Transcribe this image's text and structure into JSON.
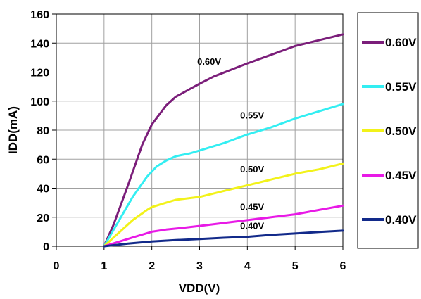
{
  "chart_data": {
    "type": "line",
    "title": "",
    "xlabel": "VDD(V)",
    "ylabel": "IDD(mA)",
    "xlim": [
      0,
      6
    ],
    "ylim": [
      0,
      160
    ],
    "xticks": [
      0,
      1,
      2,
      3,
      4,
      5,
      6
    ],
    "yticks": [
      0,
      20,
      40,
      60,
      80,
      100,
      120,
      140,
      160
    ],
    "grid": true,
    "legend_position": "right",
    "series": [
      {
        "name": "0.60V",
        "color": "#7B1E7A",
        "x": [
          1.0,
          1.2,
          1.5,
          1.8,
          2.0,
          2.3,
          2.5,
          3.0,
          3.3,
          4.0,
          4.5,
          5.0,
          5.5,
          6.0
        ],
        "y": [
          0,
          15,
          42,
          70,
          84,
          97,
          103,
          112,
          117,
          126,
          132,
          138,
          142,
          146
        ]
      },
      {
        "name": "0.55V",
        "color": "#33EEF2",
        "x": [
          1.0,
          1.3,
          1.6,
          1.9,
          2.1,
          2.3,
          2.5,
          2.8,
          3.0,
          3.5,
          4.0,
          4.5,
          5.0,
          5.5,
          6.0
        ],
        "y": [
          0,
          17,
          34,
          48,
          55,
          59,
          62,
          64,
          66,
          71,
          77,
          82,
          88,
          93,
          98
        ]
      },
      {
        "name": "0.50V",
        "color": "#F2F21A",
        "x": [
          1.0,
          1.3,
          1.6,
          1.9,
          2.0,
          2.3,
          2.5,
          3.0,
          3.5,
          4.0,
          4.5,
          5.0,
          5.5,
          6.0
        ],
        "y": [
          0,
          9,
          18,
          25,
          27,
          30,
          32,
          34,
          38,
          42,
          46,
          50,
          53,
          57
        ]
      },
      {
        "name": "0.45V",
        "color": "#E81AE6",
        "x": [
          1.0,
          1.3,
          1.6,
          2.0,
          2.3,
          2.6,
          3.0,
          3.5,
          4.0,
          4.5,
          5.0,
          5.5,
          6.0
        ],
        "y": [
          0,
          3,
          6,
          10,
          11.5,
          12.5,
          14,
          16,
          18,
          20,
          22,
          25,
          28
        ]
      },
      {
        "name": "0.40V",
        "color": "#122A8A",
        "x": [
          1.0,
          1.5,
          2.0,
          2.5,
          3.0,
          3.5,
          4.0,
          4.5,
          5.0,
          5.5,
          6.0
        ],
        "y": [
          0,
          1.8,
          3.3,
          4.2,
          5.0,
          5.8,
          6.5,
          7.8,
          8.8,
          9.8,
          10.7
        ]
      }
    ],
    "curve_labels": [
      {
        "text": "0.60V",
        "x": 2.95,
        "y": 125
      },
      {
        "text": "0.55V",
        "x": 3.85,
        "y": 88
      },
      {
        "text": "0.50V",
        "x": 3.85,
        "y": 51
      },
      {
        "text": "0.45V",
        "x": 3.85,
        "y": 25
      },
      {
        "text": "0.40V",
        "x": 3.85,
        "y": 12
      }
    ]
  }
}
